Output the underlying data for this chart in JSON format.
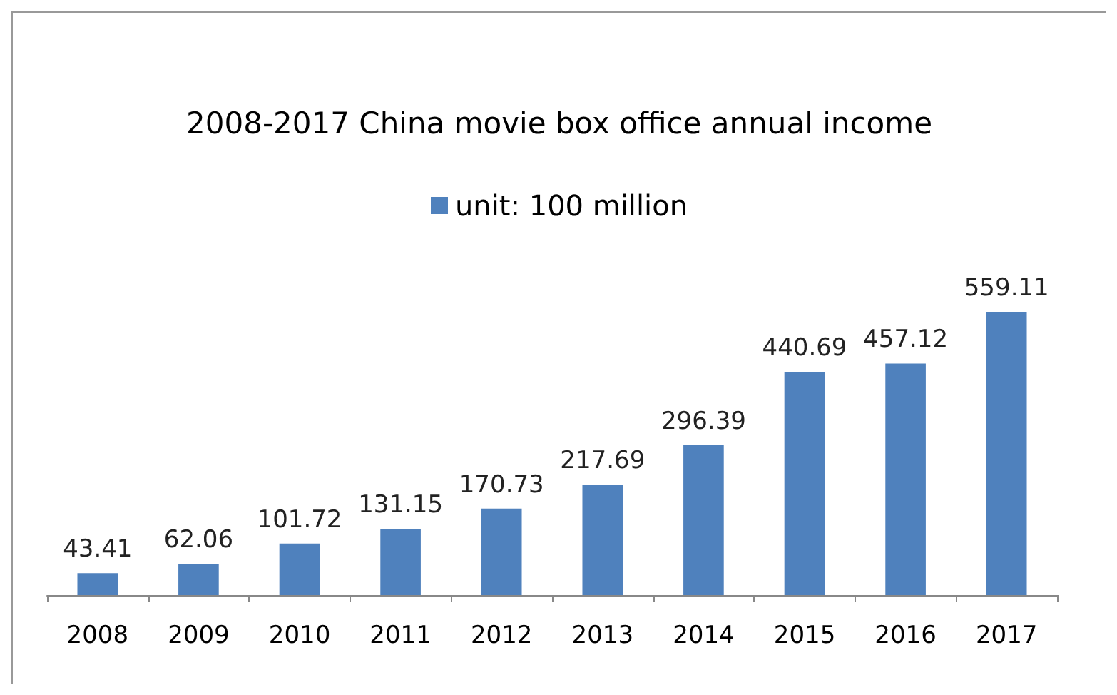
{
  "chart_data": {
    "type": "bar",
    "title": "2008-2017 China movie box office annual income",
    "categories": [
      "2008",
      "2009",
      "2010",
      "2011",
      "2012",
      "2013",
      "2014",
      "2015",
      "2016",
      "2017"
    ],
    "series": [
      {
        "name": "unit: 100 million",
        "color": "#4f81bd",
        "values": [
          43.41,
          62.06,
          101.72,
          131.15,
          170.73,
          217.69,
          296.39,
          440.69,
          457.12,
          559.11
        ]
      }
    ],
    "data_labels": true,
    "legend": "top"
  }
}
